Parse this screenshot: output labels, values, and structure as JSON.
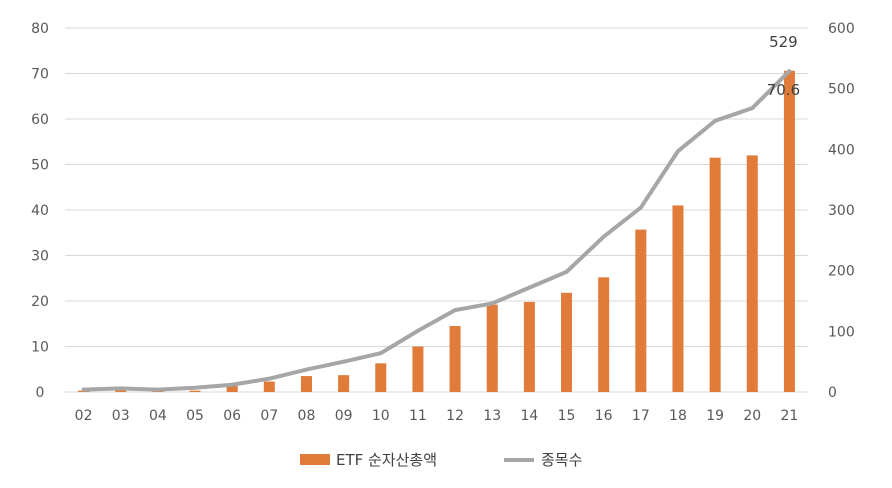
{
  "chart_data": {
    "type": "bar",
    "categories": [
      "02",
      "03",
      "04",
      "05",
      "06",
      "07",
      "08",
      "09",
      "10",
      "11",
      "12",
      "13",
      "14",
      "15",
      "16",
      "17",
      "18",
      "19",
      "20",
      "21"
    ],
    "series": [
      {
        "name": "ETF 순자산총액",
        "type": "bar",
        "axis": "left",
        "color": "#E07B39",
        "values": [
          0.3,
          0.4,
          0.3,
          0.3,
          1.5,
          2.3,
          3.5,
          3.7,
          6.3,
          10.0,
          14.5,
          19.2,
          19.8,
          21.8,
          25.2,
          35.7,
          41.0,
          51.5,
          52.0,
          70.6
        ]
      },
      {
        "name": "종목수",
        "type": "line",
        "axis": "right",
        "color": "#A6A6A6",
        "values": [
          4,
          6,
          4,
          7,
          12,
          22,
          37,
          50,
          64,
          101,
          135,
          146,
          172,
          198,
          256,
          304,
          397,
          447,
          468,
          529
        ]
      }
    ],
    "ylim_left": [
      0,
      80
    ],
    "yticks_left": [
      "0",
      "10",
      "20",
      "30",
      "40",
      "50",
      "60",
      "70",
      "80"
    ],
    "ylim_right": [
      0,
      600
    ],
    "yticks_right": [
      "0",
      "100",
      "200",
      "300",
      "400",
      "500",
      "600"
    ],
    "grid": true,
    "legend_position": "bottom",
    "annotations": [
      {
        "text": "529",
        "series": "종목수",
        "category": "21"
      },
      {
        "text": "70.6",
        "series": "ETF 순자산총액",
        "category": "21"
      }
    ]
  }
}
